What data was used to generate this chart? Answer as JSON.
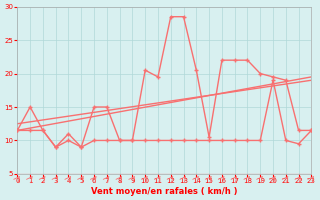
{
  "x": [
    0,
    1,
    2,
    3,
    4,
    5,
    6,
    7,
    8,
    9,
    10,
    11,
    12,
    13,
    14,
    15,
    16,
    17,
    18,
    19,
    20,
    21,
    22,
    23
  ],
  "rafales": [
    11.5,
    15,
    11.5,
    9,
    11,
    9,
    15,
    15,
    10,
    10,
    20.5,
    19.5,
    28.5,
    28.5,
    20.5,
    10.5,
    22,
    22,
    22,
    20,
    19.5,
    19,
    11.5,
    11.5
  ],
  "vent_moyen": [
    11.5,
    11.5,
    11.5,
    9,
    10,
    9,
    10,
    10,
    10,
    10,
    10,
    10,
    10,
    10,
    10,
    10,
    10,
    10,
    10,
    10,
    19,
    10,
    9.5,
    11.5
  ],
  "trend1_x": [
    0,
    23
  ],
  "trend1_y": [
    11.5,
    19.5
  ],
  "trend2_x": [
    0,
    23
  ],
  "trend2_y": [
    12.5,
    19.0
  ],
  "line_color": "#f87070",
  "bg_color": "#d8f0f0",
  "grid_color": "#b0d8d8",
  "xlabel": "Vent moyen/en rafales ( km/h )",
  "ylim": [
    5,
    30
  ],
  "xlim": [
    0,
    23
  ],
  "yticks": [
    5,
    10,
    15,
    20,
    25,
    30
  ],
  "xticks": [
    0,
    1,
    2,
    3,
    4,
    5,
    6,
    7,
    8,
    9,
    10,
    11,
    12,
    13,
    14,
    15,
    16,
    17,
    18,
    19,
    20,
    21,
    22,
    23
  ]
}
